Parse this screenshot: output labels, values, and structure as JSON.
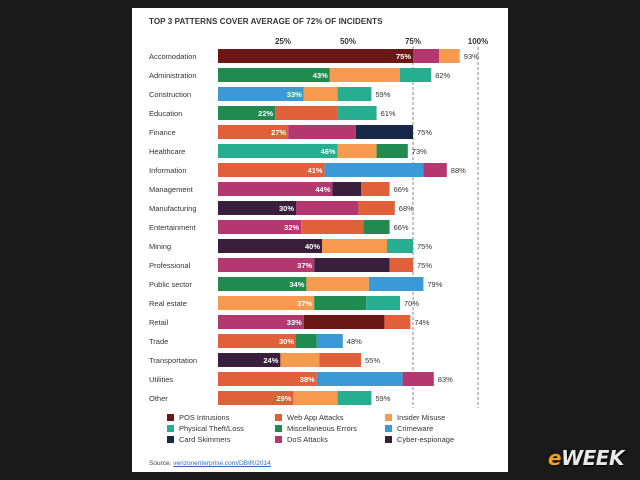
{
  "chart_data": {
    "type": "bar",
    "stacked": true,
    "title": "TOP 3 PATTERNS COVER AVERAGE OF 72% OF INCIDENTS",
    "xlim": [
      0,
      100
    ],
    "x_ticks": [
      "25%",
      "50%",
      "75%",
      "100%"
    ],
    "x_tick_values": [
      25,
      50,
      75,
      100
    ],
    "grid": "dashed vertical lines at 75% and 100%",
    "legend_position": "bottom",
    "series": [
      {
        "name": "POS Intrusions",
        "color": "#6b1716"
      },
      {
        "name": "Web App Attacks",
        "color": "#e0603a"
      },
      {
        "name": "Insider Misuse",
        "color": "#f59a4e"
      },
      {
        "name": "Physical Theft/Loss",
        "color": "#27ae91"
      },
      {
        "name": "Miscellaneous Errors",
        "color": "#218a4e"
      },
      {
        "name": "Crimeware",
        "color": "#3b99d8"
      },
      {
        "name": "Card Skimmers",
        "color": "#172848"
      },
      {
        "name": "DoS Attacks",
        "color": "#b5376f"
      },
      {
        "name": "Cyber-espionage",
        "color": "#3a1f3d"
      }
    ],
    "categories": [
      {
        "name": "Accomodation",
        "first_label": "75%",
        "total_label": "93%",
        "segments": [
          {
            "series": "POS Intrusions",
            "value": 75
          },
          {
            "series": "DoS Attacks",
            "value": 10
          },
          {
            "series": "Insider Misuse",
            "value": 8
          }
        ]
      },
      {
        "name": "Administration",
        "first_label": "43%",
        "total_label": "82%",
        "segments": [
          {
            "series": "Miscellaneous Errors",
            "value": 43
          },
          {
            "series": "Insider Misuse",
            "value": 27
          },
          {
            "series": "Physical Theft/Loss",
            "value": 12
          }
        ]
      },
      {
        "name": "Construction",
        "first_label": "33%",
        "total_label": "59%",
        "segments": [
          {
            "series": "Crimeware",
            "value": 33
          },
          {
            "series": "Insider Misuse",
            "value": 13
          },
          {
            "series": "Physical Theft/Loss",
            "value": 13
          }
        ]
      },
      {
        "name": "Education",
        "first_label": "22%",
        "total_label": "61%",
        "segments": [
          {
            "series": "Miscellaneous Errors",
            "value": 22
          },
          {
            "series": "Web App Attacks",
            "value": 24
          },
          {
            "series": "Physical Theft/Loss",
            "value": 15
          }
        ]
      },
      {
        "name": "Finance",
        "first_label": "27%",
        "total_label": "75%",
        "segments": [
          {
            "series": "Web App Attacks",
            "value": 27
          },
          {
            "series": "DoS Attacks",
            "value": 26
          },
          {
            "series": "Card Skimmers",
            "value": 22
          }
        ]
      },
      {
        "name": "Healthcare",
        "first_label": "46%",
        "total_label": "73%",
        "segments": [
          {
            "series": "Physical Theft/Loss",
            "value": 46
          },
          {
            "series": "Insider Misuse",
            "value": 15
          },
          {
            "series": "Miscellaneous Errors",
            "value": 12
          }
        ]
      },
      {
        "name": "Information",
        "first_label": "41%",
        "total_label": "88%",
        "segments": [
          {
            "series": "Web App Attacks",
            "value": 41
          },
          {
            "series": "Crimeware",
            "value": 38
          },
          {
            "series": "DoS Attacks",
            "value": 9
          }
        ]
      },
      {
        "name": "Management",
        "first_label": "44%",
        "total_label": "66%",
        "segments": [
          {
            "series": "DoS Attacks",
            "value": 44
          },
          {
            "series": "Cyber-espionage",
            "value": 11
          },
          {
            "series": "Web App Attacks",
            "value": 11
          }
        ]
      },
      {
        "name": "Manufacturing",
        "first_label": "30%",
        "total_label": "68%",
        "segments": [
          {
            "series": "Cyber-espionage",
            "value": 30
          },
          {
            "series": "DoS Attacks",
            "value": 24
          },
          {
            "series": "Web App Attacks",
            "value": 14
          }
        ]
      },
      {
        "name": "Entertainment",
        "first_label": "32%",
        "total_label": "66%",
        "segments": [
          {
            "series": "DoS Attacks",
            "value": 32
          },
          {
            "series": "Web App Attacks",
            "value": 24
          },
          {
            "series": "Miscellaneous Errors",
            "value": 10
          }
        ]
      },
      {
        "name": "Mining",
        "first_label": "40%",
        "total_label": "75%",
        "segments": [
          {
            "series": "Cyber-espionage",
            "value": 40
          },
          {
            "series": "Insider Misuse",
            "value": 25
          },
          {
            "series": "Physical Theft/Loss",
            "value": 10
          }
        ]
      },
      {
        "name": "Professional",
        "first_label": "37%",
        "total_label": "75%",
        "segments": [
          {
            "series": "DoS Attacks",
            "value": 37
          },
          {
            "series": "Cyber-espionage",
            "value": 29
          },
          {
            "series": "Web App Attacks",
            "value": 9
          }
        ]
      },
      {
        "name": "Public sector",
        "first_label": "34%",
        "total_label": "79%",
        "segments": [
          {
            "series": "Miscellaneous Errors",
            "value": 34
          },
          {
            "series": "Insider Misuse",
            "value": 24
          },
          {
            "series": "Crimeware",
            "value": 21
          }
        ]
      },
      {
        "name": "Real estate",
        "first_label": "37%",
        "total_label": "70%",
        "segments": [
          {
            "series": "Insider Misuse",
            "value": 37
          },
          {
            "series": "Miscellaneous Errors",
            "value": 20
          },
          {
            "series": "Physical Theft/Loss",
            "value": 13
          }
        ]
      },
      {
        "name": "Retail",
        "first_label": "33%",
        "total_label": "74%",
        "segments": [
          {
            "series": "DoS Attacks",
            "value": 33
          },
          {
            "series": "POS Intrusions",
            "value": 31
          },
          {
            "series": "Web App Attacks",
            "value": 10
          }
        ]
      },
      {
        "name": "Trade",
        "first_label": "30%",
        "total_label": "48%",
        "segments": [
          {
            "series": "Web App Attacks",
            "value": 30
          },
          {
            "series": "Miscellaneous Errors",
            "value": 8
          },
          {
            "series": "Crimeware",
            "value": 10
          }
        ]
      },
      {
        "name": "Transportation",
        "first_label": "24%",
        "total_label": "55%",
        "segments": [
          {
            "series": "Cyber-espionage",
            "value": 24
          },
          {
            "series": "Insider Misuse",
            "value": 15
          },
          {
            "series": "Web App Attacks",
            "value": 16
          }
        ]
      },
      {
        "name": "Utilities",
        "first_label": "38%",
        "total_label": "83%",
        "segments": [
          {
            "series": "Web App Attacks",
            "value": 38
          },
          {
            "series": "Crimeware",
            "value": 33
          },
          {
            "series": "DoS Attacks",
            "value": 12
          }
        ]
      },
      {
        "name": "Other",
        "first_label": "29%",
        "total_label": "59%",
        "segments": [
          {
            "series": "Web App Attacks",
            "value": 29
          },
          {
            "series": "Insider Misuse",
            "value": 17
          },
          {
            "series": "Physical Theft/Loss",
            "value": 13
          }
        ]
      }
    ]
  },
  "source": {
    "prefix": "Source: ",
    "link": "verizonenterprise.com/DBIR/2014"
  },
  "logo": {
    "accent": "e",
    "rest": "WEEK"
  }
}
